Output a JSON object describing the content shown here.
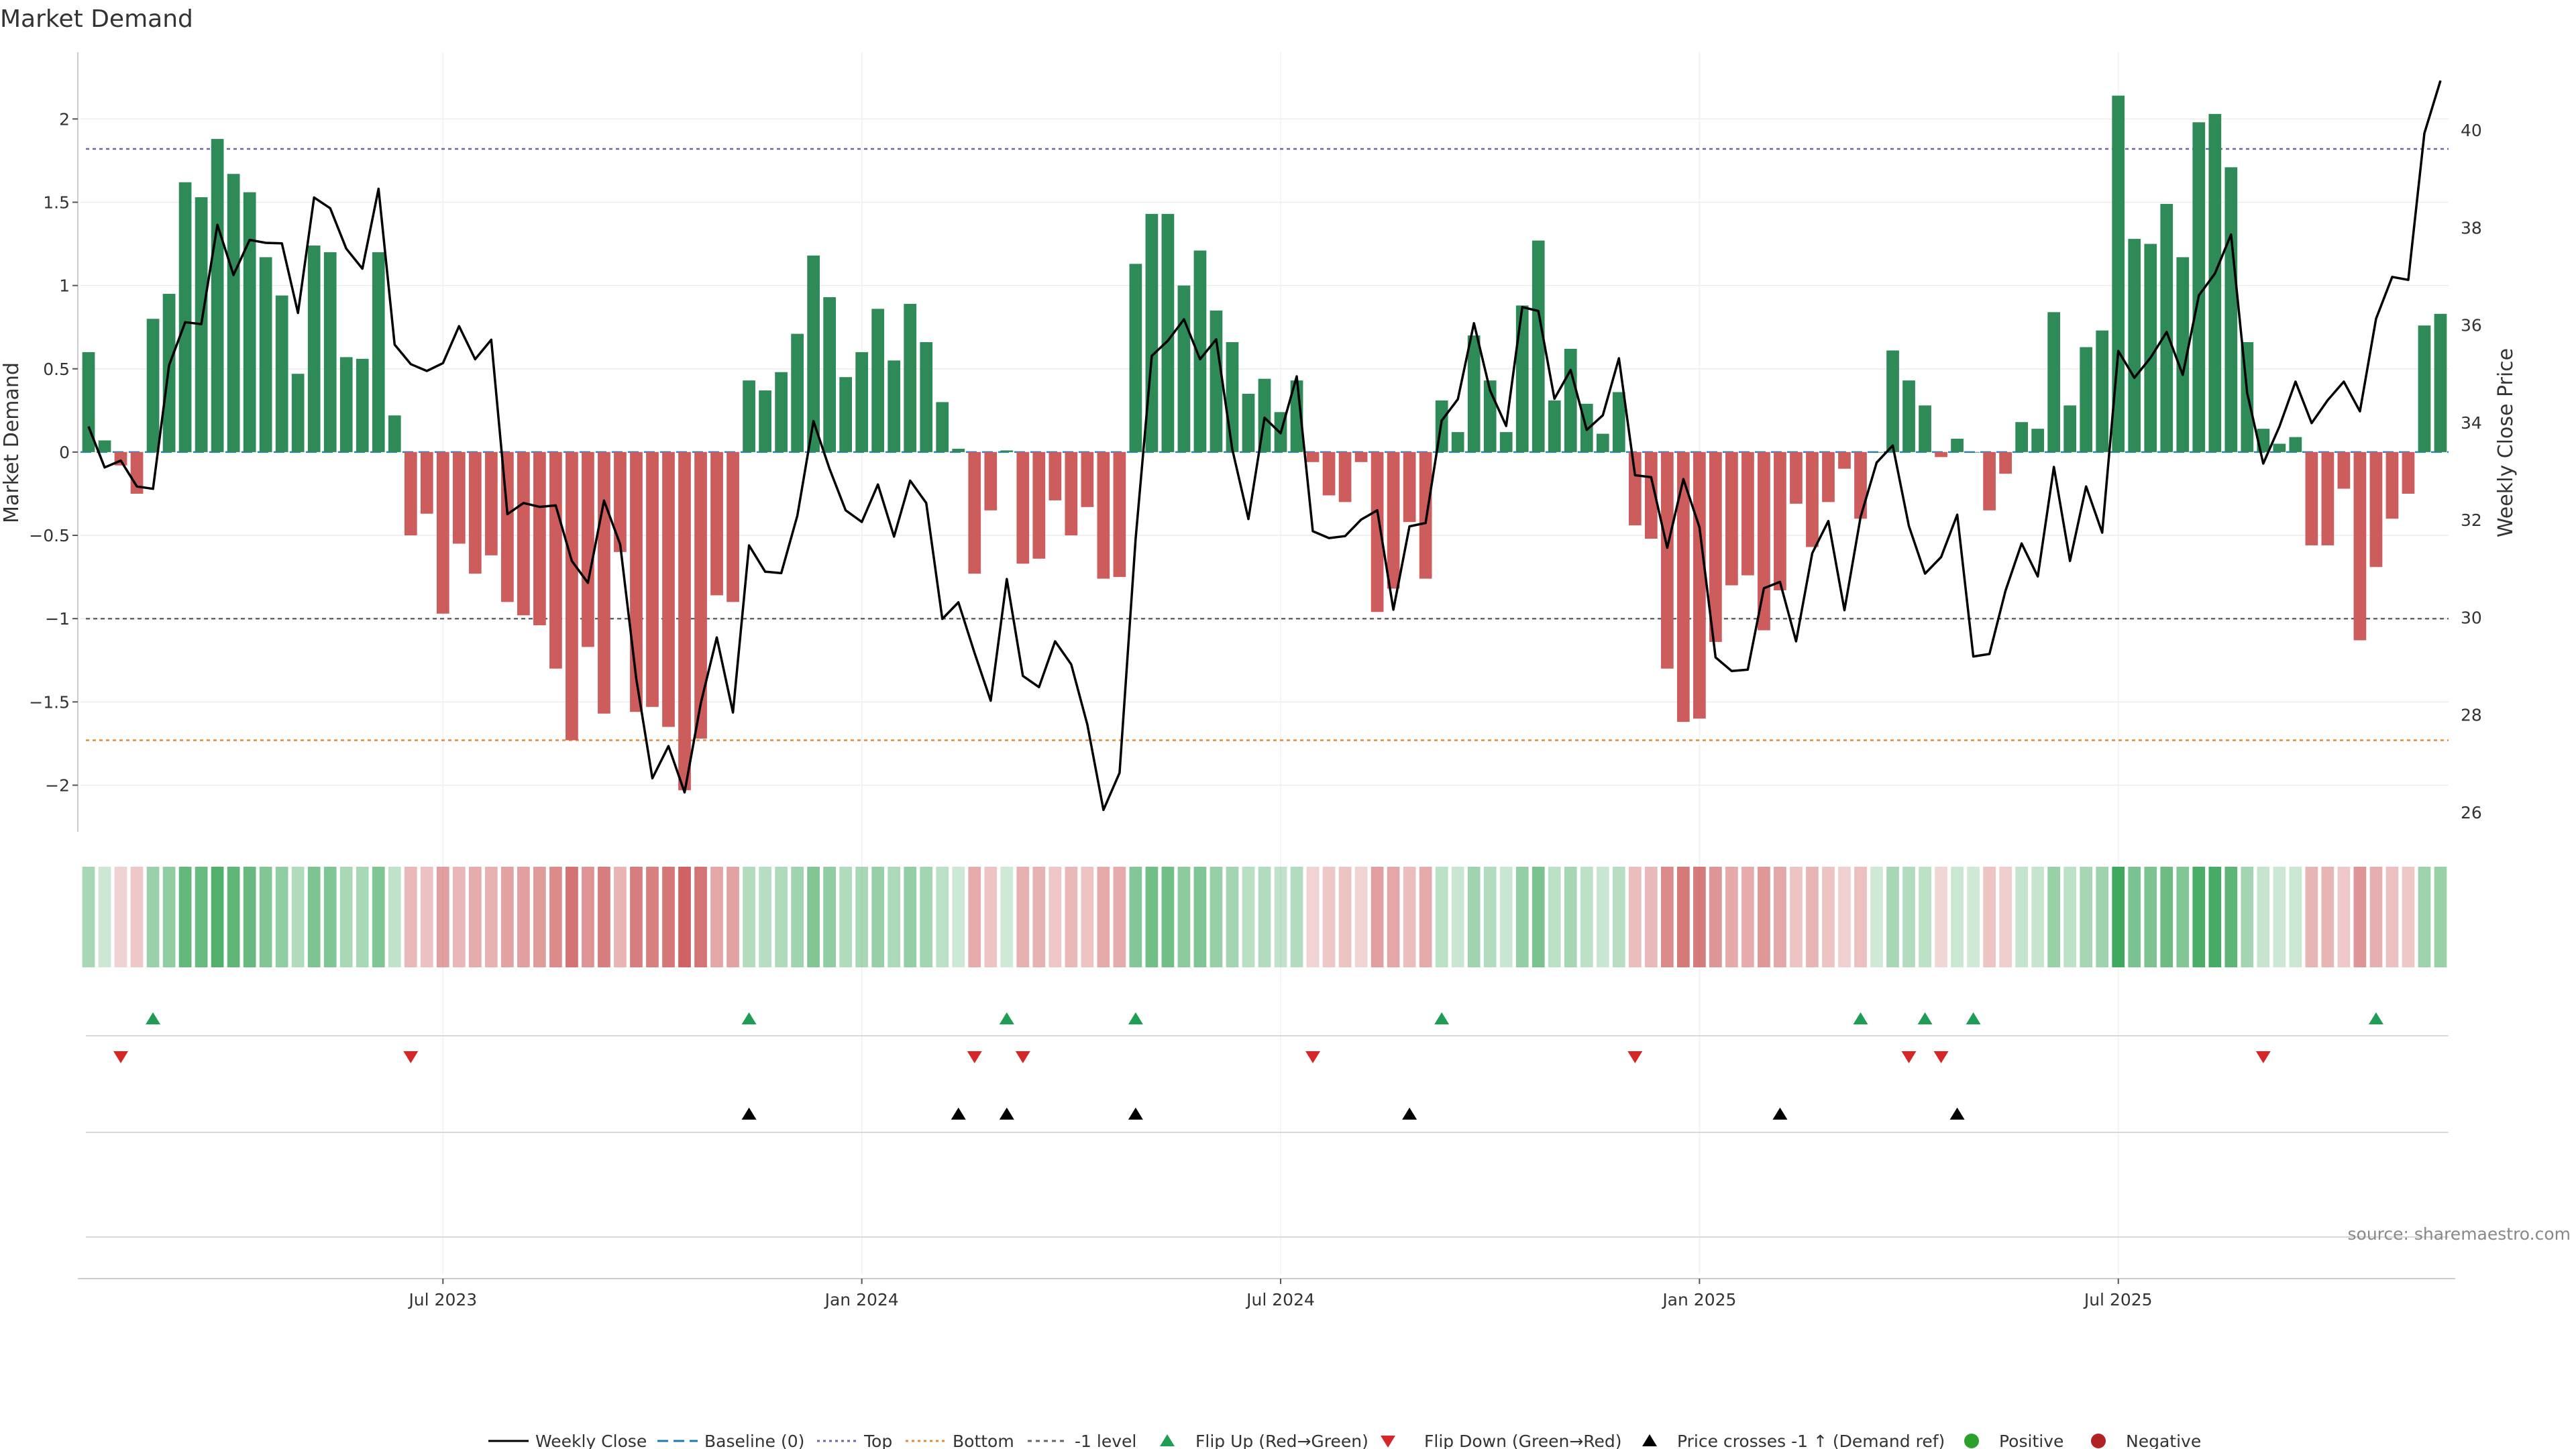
{
  "chart_data": {
    "type": "bar",
    "title": "Market Demand",
    "ylabel": "Market Demand",
    "ylabel_right": "Weekly Close Price",
    "ylim": [
      -2.28,
      2.4
    ],
    "ylim_right": [
      25.6,
      41.6
    ],
    "yticks": [
      2,
      1.5,
      1,
      0.5,
      0,
      -0.5,
      -1,
      -1.5,
      -2
    ],
    "yticks_right": [
      40,
      38,
      36,
      34,
      32,
      30,
      28,
      26
    ],
    "ytick_labels": [
      "2",
      "1.5",
      "1",
      "0.5",
      "0",
      "−0.5",
      "−1",
      "−1.5",
      "−2"
    ],
    "yticks_right_labels": [
      "40",
      "38",
      "36",
      "34",
      "32",
      "30",
      "28",
      "26"
    ],
    "xticks": [
      {
        "index": 22,
        "label": "Jul 2023"
      },
      {
        "index": 48,
        "label": "Jan 2024"
      },
      {
        "index": 74,
        "label": "Jul 2024"
      },
      {
        "index": 100,
        "label": "Jan 2025"
      },
      {
        "index": 126,
        "label": "Jul 2025"
      }
    ],
    "top_level": 1.82,
    "bottom_level": -1.73,
    "minus_one_level": -1,
    "demand": [
      0.6,
      0.07,
      -0.08,
      -0.25,
      0.8,
      0.95,
      1.62,
      1.53,
      1.88,
      1.67,
      1.56,
      1.17,
      0.94,
      0.47,
      1.24,
      1.2,
      0.57,
      0.56,
      1.2,
      0.22,
      -0.5,
      -0.37,
      -0.97,
      -0.55,
      -0.73,
      -0.62,
      -0.9,
      -0.98,
      -1.04,
      -1.3,
      -1.73,
      -1.17,
      -1.57,
      -0.6,
      -1.56,
      -1.53,
      -1.65,
      -2.03,
      -1.72,
      -0.86,
      -0.9,
      0.43,
      0.37,
      0.48,
      0.71,
      1.18,
      0.93,
      0.45,
      0.6,
      0.86,
      0.55,
      0.89,
      0.66,
      0.3,
      0.02,
      -0.73,
      -0.35,
      0.01,
      -0.67,
      -0.64,
      -0.29,
      -0.5,
      -0.33,
      -0.76,
      -0.75,
      1.13,
      1.43,
      1.43,
      1.0,
      1.21,
      0.85,
      0.66,
      0.35,
      0.44,
      0.24,
      0.43,
      -0.06,
      -0.26,
      -0.3,
      -0.06,
      -0.96,
      -0.82,
      -0.42,
      -0.76,
      0.31,
      0.12,
      0.7,
      0.43,
      0.12,
      0.88,
      1.27,
      0.31,
      0.62,
      0.29,
      0.11,
      0.36,
      -0.44,
      -0.52,
      -1.3,
      -1.62,
      -1.6,
      -1.14,
      -0.8,
      -0.74,
      -1.07,
      -0.83,
      -0.31,
      -0.57,
      -0.3,
      -0.1,
      -0.4,
      0.0,
      0.61,
      0.43,
      0.28,
      -0.03,
      0.08,
      0.0,
      -0.35,
      -0.13,
      0.18,
      0.14,
      0.84,
      0.28,
      0.63,
      0.73,
      2.14,
      1.28,
      1.25,
      1.49,
      1.17,
      1.98,
      2.03,
      1.71,
      0.66,
      0.14,
      0.05,
      0.09,
      -0.56,
      -0.56,
      -0.22,
      -1.13,
      -0.69,
      -0.4,
      -0.25,
      0.76,
      0.83
    ],
    "close": [
      33.92,
      33.08,
      33.22,
      32.69,
      32.64,
      35.18,
      36.06,
      36.02,
      38.06,
      37.03,
      37.75,
      37.69,
      37.68,
      36.25,
      38.62,
      38.4,
      37.57,
      37.16,
      38.8,
      35.6,
      35.2,
      35.06,
      35.22,
      35.98,
      35.3,
      35.7,
      32.12,
      32.35,
      32.27,
      32.3,
      31.16,
      30.71,
      32.4,
      31.5,
      28.74,
      26.7,
      27.36,
      26.41,
      28.23,
      29.59,
      28.05,
      31.48,
      30.94,
      30.91,
      32.09,
      34.03,
      33.05,
      32.2,
      31.96,
      32.73,
      31.66,
      32.81,
      32.35,
      29.97,
      30.31,
      29.27,
      28.29,
      30.79,
      28.8,
      28.57,
      29.51,
      29.04,
      27.8,
      26.05,
      26.81,
      31.62,
      35.37,
      35.68,
      36.12,
      35.3,
      35.71,
      33.45,
      32.02,
      34.1,
      33.78,
      34.95,
      31.77,
      31.63,
      31.67,
      32.01,
      32.2,
      30.16,
      31.87,
      31.94,
      34.04,
      34.48,
      36.04,
      34.66,
      33.93,
      36.37,
      36.29,
      34.49,
      35.08,
      33.85,
      34.15,
      35.32,
      32.92,
      32.88,
      31.43,
      32.84,
      31.85,
      29.18,
      28.9,
      28.93,
      30.6,
      30.73,
      29.51,
      31.32,
      31.98,
      30.15,
      32.06,
      33.18,
      33.53,
      31.88,
      30.9,
      31.24,
      32.11,
      29.2,
      29.25,
      30.55,
      31.52,
      30.84,
      33.09,
      31.16,
      32.69,
      31.74,
      35.47,
      34.92,
      35.33,
      35.86,
      34.98,
      36.61,
      37.06,
      37.86,
      34.61,
      33.16,
      33.92,
      34.84,
      33.99,
      34.46,
      34.84,
      34.23,
      36.13,
      36.99,
      36.93,
      39.94,
      41.02
    ],
    "flip_up_index": [
      4,
      41,
      57,
      65,
      84,
      110,
      114,
      117,
      142
    ],
    "flip_down_index": [
      2,
      20,
      55,
      58,
      76,
      96,
      113,
      115,
      135
    ],
    "price_cross_index": [
      41,
      54,
      57,
      65,
      82,
      105,
      116
    ],
    "source": "source: sharemaestro.com",
    "legend": {
      "weekly_close": "Weekly Close",
      "baseline": "Baseline (0)",
      "top": "Top",
      "bottom": "Bottom",
      "minus1": "-1 level",
      "flip_up": "Flip Up (Red→Green)",
      "flip_down": "Flip Down (Green→Red)",
      "price_cross": "Price crosses -1 ↑ (Demand ref)",
      "positive": "Positive",
      "negative": "Negative"
    },
    "colors": {
      "positive": "#2e8b57",
      "negative": "#cd5c5c",
      "close": "#000000",
      "baseline": "#1f77b4",
      "top": "#6a6aa0",
      "bottom": "#e08a3a",
      "minus1": "#666666",
      "flip_up": "#1f9d55",
      "flip_down": "#d62728",
      "price_cross": "#000000",
      "positive_dot": "#2ca02c",
      "negative_dot": "#b22222"
    }
  }
}
